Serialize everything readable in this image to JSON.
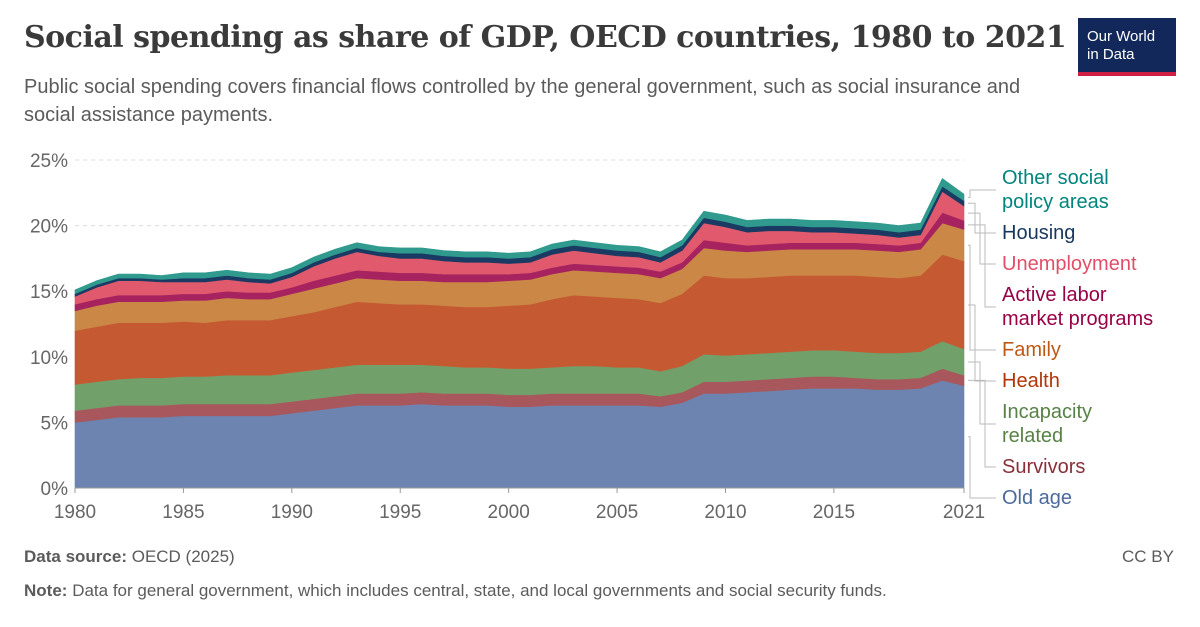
{
  "header": {
    "title": "Social spending as share of GDP, OECD countries, 1980 to 2021",
    "subtitle": "Public social spending covers financial flows controlled by the general government, such as social insurance and social assistance payments."
  },
  "logo": {
    "line1": "Our World",
    "line2": "in Data",
    "bg_color": "#12275a",
    "accent_color": "#cf1f42"
  },
  "footer": {
    "source_label": "Data source:",
    "source_text": "OECD (2025)",
    "note_label": "Note:",
    "note_text": "Data for general government, which includes central, state, and local governments and social security funds.",
    "license": "CC BY"
  },
  "chart_data": {
    "type": "area",
    "stacked": true,
    "x": [
      1980,
      1981,
      1982,
      1983,
      1984,
      1985,
      1986,
      1987,
      1988,
      1989,
      1990,
      1991,
      1992,
      1993,
      1994,
      1995,
      1996,
      1997,
      1998,
      1999,
      2000,
      2001,
      2002,
      2003,
      2004,
      2005,
      2006,
      2007,
      2008,
      2009,
      2010,
      2011,
      2012,
      2013,
      2014,
      2015,
      2016,
      2017,
      2018,
      2019,
      2020,
      2021
    ],
    "x_ticks": [
      "1980",
      "1985",
      "1990",
      "1995",
      "2000",
      "2005",
      "2010",
      "2015",
      "2021"
    ],
    "x_tick_values": [
      1980,
      1985,
      1990,
      1995,
      2000,
      2005,
      2010,
      2015,
      2021
    ],
    "ylim": [
      0,
      25
    ],
    "y_ticks": [
      "0%",
      "5%",
      "10%",
      "15%",
      "20%",
      "25%"
    ],
    "y_tick_values": [
      0,
      5,
      10,
      15,
      20,
      25
    ],
    "grid": true,
    "legend_placement": "right",
    "series": [
      {
        "name": "Old age",
        "color": "#6d84b0",
        "label_color": "#4c6a9c",
        "values": [
          5.0,
          5.2,
          5.4,
          5.4,
          5.4,
          5.5,
          5.5,
          5.5,
          5.5,
          5.5,
          5.7,
          5.9,
          6.1,
          6.3,
          6.3,
          6.3,
          6.4,
          6.3,
          6.3,
          6.3,
          6.2,
          6.2,
          6.3,
          6.3,
          6.3,
          6.3,
          6.3,
          6.2,
          6.5,
          7.2,
          7.2,
          7.3,
          7.4,
          7.5,
          7.6,
          7.6,
          7.6,
          7.5,
          7.5,
          7.6,
          8.2,
          7.8
        ]
      },
      {
        "name": "Survivors",
        "color": "#a8575c",
        "label_color": "#883039",
        "values": [
          0.9,
          0.9,
          0.9,
          0.9,
          0.9,
          0.9,
          0.9,
          0.9,
          0.9,
          0.9,
          0.9,
          0.9,
          0.9,
          0.9,
          0.9,
          0.9,
          0.9,
          0.9,
          0.9,
          0.9,
          0.9,
          0.9,
          0.9,
          0.9,
          0.9,
          0.9,
          0.9,
          0.8,
          0.8,
          0.9,
          0.9,
          0.9,
          0.9,
          0.9,
          0.9,
          0.9,
          0.8,
          0.8,
          0.8,
          0.8,
          0.9,
          0.8
        ]
      },
      {
        "name": "Incapacity related",
        "color": "#72a06a",
        "label_color": "#578145",
        "values": [
          2.0,
          2.0,
          2.0,
          2.1,
          2.1,
          2.1,
          2.1,
          2.2,
          2.2,
          2.2,
          2.2,
          2.2,
          2.2,
          2.2,
          2.2,
          2.2,
          2.1,
          2.1,
          2.0,
          2.0,
          2.0,
          2.0,
          2.0,
          2.1,
          2.1,
          2.0,
          2.0,
          1.9,
          2.0,
          2.1,
          2.0,
          2.0,
          2.0,
          2.0,
          2.0,
          2.0,
          2.0,
          2.0,
          2.0,
          2.0,
          2.1,
          2.0
        ]
      },
      {
        "name": "Health",
        "color": "#c55a32",
        "label_color": "#b13507",
        "values": [
          4.1,
          4.2,
          4.3,
          4.2,
          4.2,
          4.2,
          4.1,
          4.2,
          4.2,
          4.2,
          4.3,
          4.4,
          4.6,
          4.8,
          4.7,
          4.6,
          4.6,
          4.6,
          4.6,
          4.6,
          4.8,
          4.9,
          5.2,
          5.4,
          5.3,
          5.3,
          5.2,
          5.2,
          5.5,
          6.0,
          5.9,
          5.8,
          5.8,
          5.8,
          5.7,
          5.7,
          5.8,
          5.8,
          5.7,
          5.8,
          6.6,
          6.7
        ]
      },
      {
        "name": "Family",
        "color": "#cb8745",
        "label_color": "#be5915",
        "values": [
          1.5,
          1.6,
          1.6,
          1.6,
          1.6,
          1.6,
          1.7,
          1.7,
          1.6,
          1.6,
          1.7,
          1.8,
          1.8,
          1.8,
          1.8,
          1.8,
          1.8,
          1.8,
          1.9,
          1.9,
          1.9,
          1.9,
          1.9,
          1.9,
          1.9,
          1.9,
          1.9,
          1.9,
          1.9,
          2.1,
          2.1,
          2.0,
          2.0,
          2.0,
          2.0,
          2.0,
          2.0,
          2.0,
          2.0,
          2.0,
          2.4,
          2.4
        ]
      },
      {
        "name": "Active labor market programs",
        "color": "#a62360",
        "label_color": "#970046",
        "values": [
          0.5,
          0.5,
          0.5,
          0.5,
          0.5,
          0.5,
          0.5,
          0.5,
          0.5,
          0.5,
          0.5,
          0.6,
          0.6,
          0.6,
          0.6,
          0.6,
          0.6,
          0.6,
          0.6,
          0.6,
          0.5,
          0.5,
          0.5,
          0.5,
          0.5,
          0.5,
          0.5,
          0.5,
          0.5,
          0.6,
          0.6,
          0.5,
          0.5,
          0.5,
          0.5,
          0.5,
          0.5,
          0.5,
          0.5,
          0.5,
          0.8,
          0.7
        ]
      },
      {
        "name": "Unemployment",
        "color": "#e0596c",
        "label_color": "#e04e69",
        "values": [
          0.6,
          0.9,
          1.1,
          1.1,
          1.0,
          0.9,
          0.9,
          0.9,
          0.8,
          0.7,
          0.8,
          1.1,
          1.3,
          1.4,
          1.2,
          1.1,
          1.1,
          1.0,
          0.9,
          0.9,
          0.8,
          0.8,
          1.0,
          1.0,
          0.9,
          0.8,
          0.8,
          0.7,
          0.9,
          1.3,
          1.2,
          1.0,
          1.0,
          0.9,
          0.8,
          0.8,
          0.7,
          0.7,
          0.6,
          0.6,
          1.6,
          1.1
        ]
      },
      {
        "name": "Housing",
        "color": "#1b3a63",
        "label_color": "#18375f",
        "values": [
          0.2,
          0.2,
          0.2,
          0.2,
          0.2,
          0.3,
          0.3,
          0.3,
          0.3,
          0.3,
          0.3,
          0.3,
          0.3,
          0.3,
          0.3,
          0.4,
          0.4,
          0.4,
          0.4,
          0.4,
          0.4,
          0.4,
          0.4,
          0.4,
          0.4,
          0.4,
          0.4,
          0.4,
          0.4,
          0.4,
          0.4,
          0.4,
          0.4,
          0.4,
          0.4,
          0.4,
          0.4,
          0.4,
          0.4,
          0.4,
          0.4,
          0.4
        ]
      },
      {
        "name": "Other social policy areas",
        "color": "#2f9a8d",
        "label_color": "#00847e",
        "values": [
          0.3,
          0.3,
          0.3,
          0.3,
          0.3,
          0.4,
          0.4,
          0.4,
          0.4,
          0.4,
          0.4,
          0.4,
          0.4,
          0.4,
          0.4,
          0.4,
          0.4,
          0.4,
          0.4,
          0.4,
          0.4,
          0.4,
          0.4,
          0.4,
          0.4,
          0.4,
          0.4,
          0.4,
          0.4,
          0.5,
          0.5,
          0.5,
          0.5,
          0.5,
          0.5,
          0.5,
          0.5,
          0.5,
          0.5,
          0.5,
          0.6,
          0.5
        ]
      }
    ]
  }
}
